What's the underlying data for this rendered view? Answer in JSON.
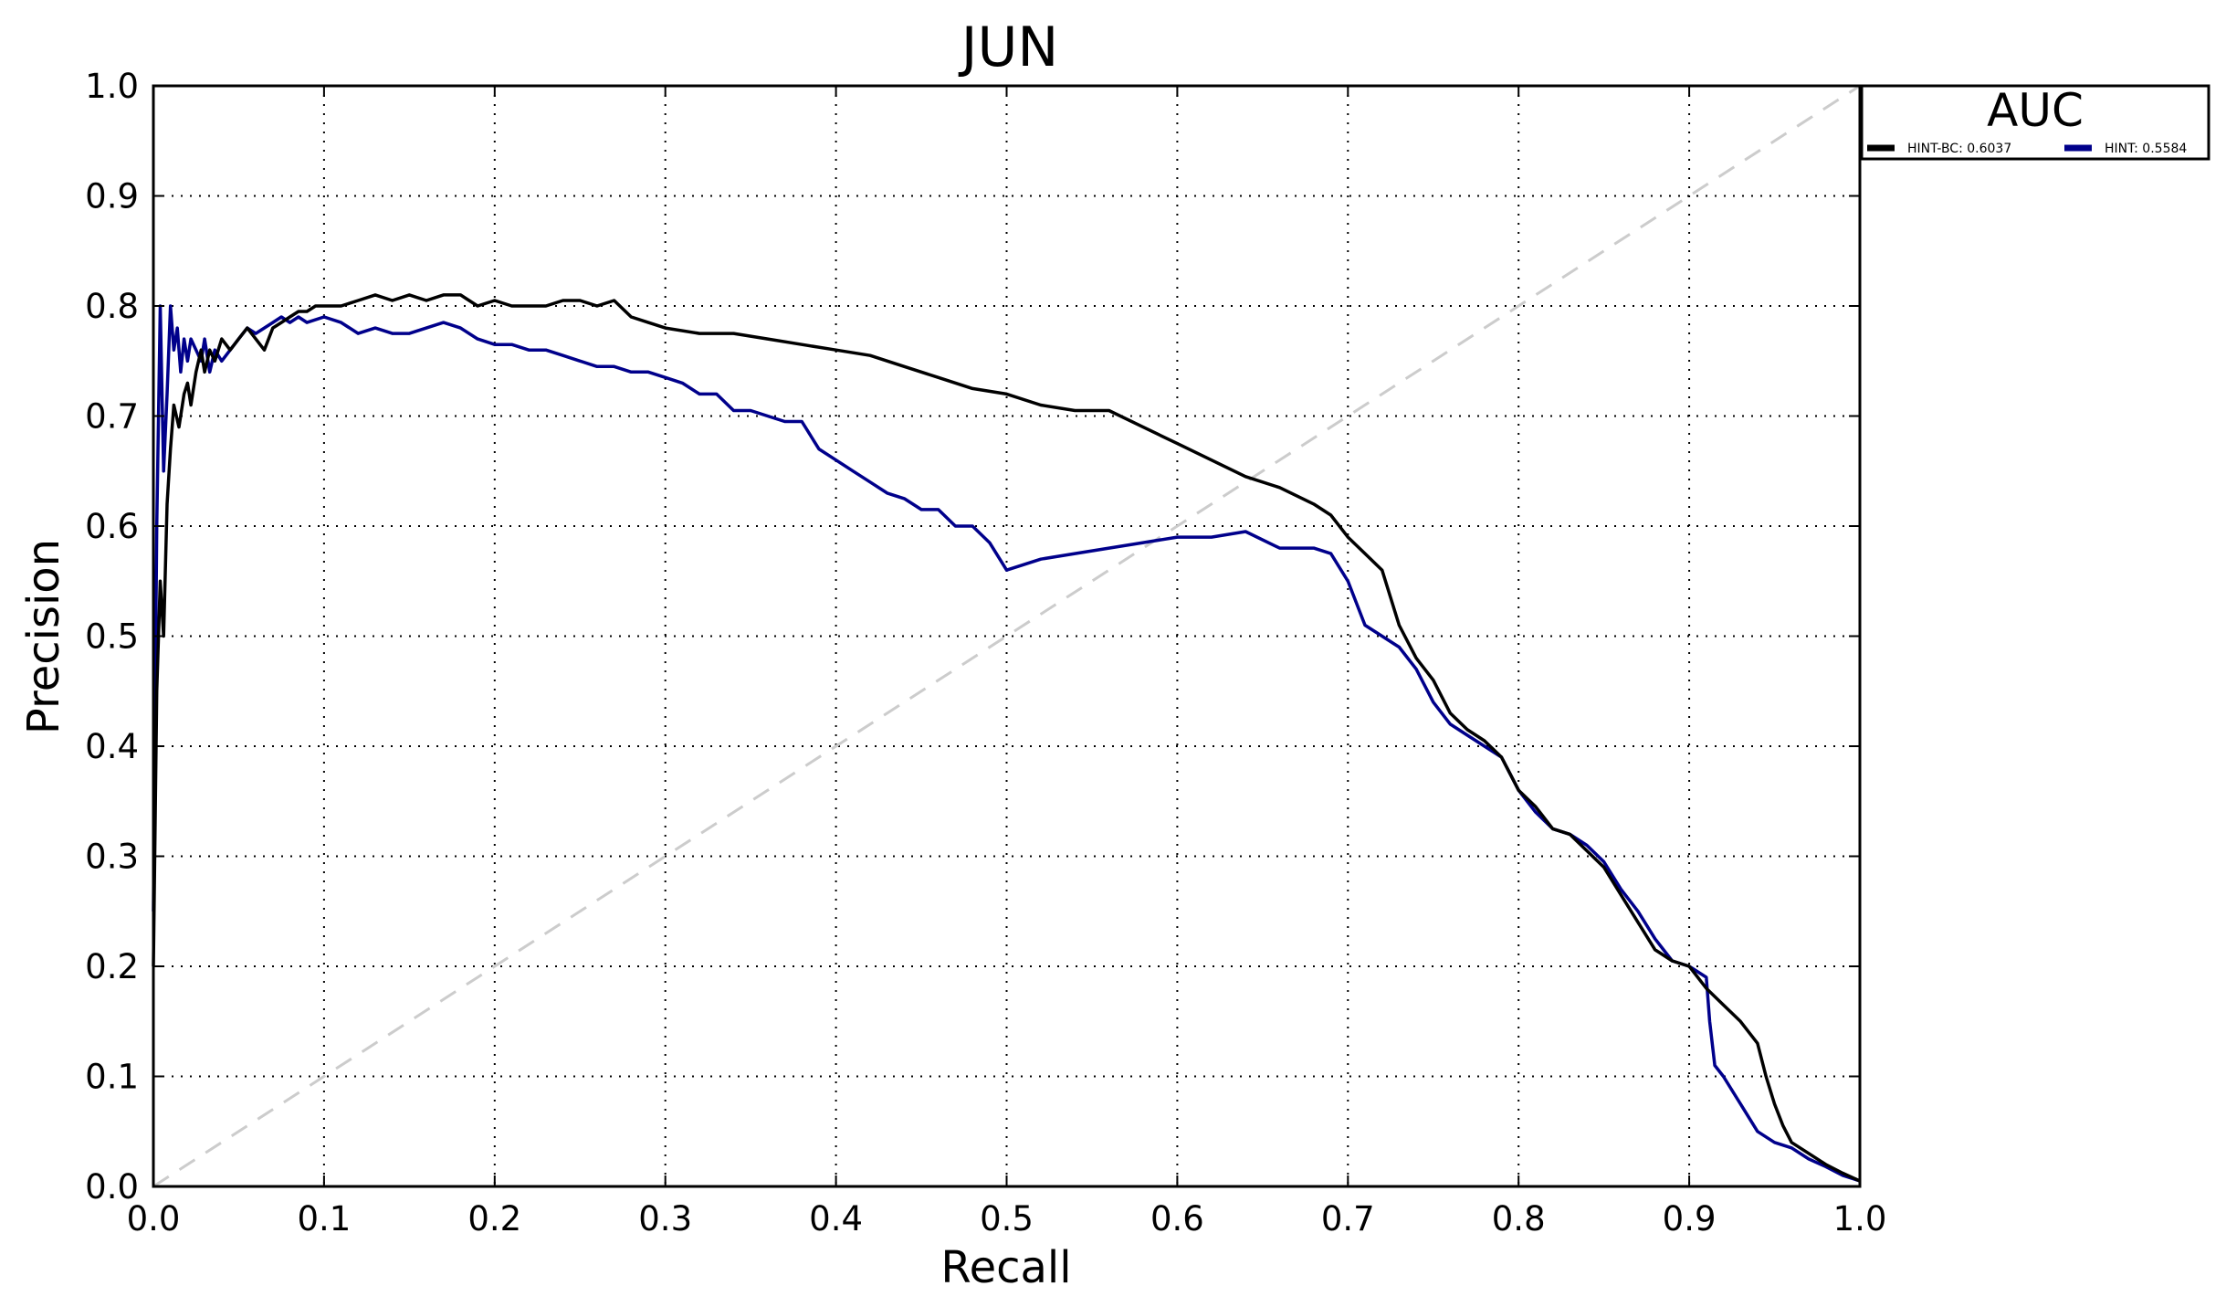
{
  "chart_data": {
    "type": "line",
    "title": "JUN",
    "xlabel": "Recall",
    "ylabel": "Precision",
    "xlim": [
      0.0,
      1.0
    ],
    "ylim": [
      0.0,
      1.0
    ],
    "xticks": [
      "0.0",
      "0.1",
      "0.2",
      "0.3",
      "0.4",
      "0.5",
      "0.6",
      "0.7",
      "0.8",
      "0.9",
      "1.0"
    ],
    "yticks": [
      "0.0",
      "0.1",
      "0.2",
      "0.3",
      "0.4",
      "0.5",
      "0.6",
      "0.7",
      "0.8",
      "0.9",
      "1.0"
    ],
    "grid": true,
    "legend": {
      "title": "AUC",
      "position": "outside-top-right"
    },
    "reference_line": {
      "x": [
        0.0,
        1.0
      ],
      "y": [
        0.0,
        1.0
      ],
      "color": "#cccccc",
      "style": "dashed"
    },
    "series": [
      {
        "name": "HINT-BC: 0.6037",
        "color": "#000000",
        "x": [
          0.0,
          0.002,
          0.004,
          0.006,
          0.008,
          0.01,
          0.012,
          0.015,
          0.018,
          0.02,
          0.022,
          0.025,
          0.028,
          0.03,
          0.033,
          0.036,
          0.04,
          0.045,
          0.05,
          0.055,
          0.06,
          0.065,
          0.07,
          0.075,
          0.08,
          0.085,
          0.09,
          0.095,
          0.1,
          0.11,
          0.12,
          0.13,
          0.14,
          0.15,
          0.16,
          0.17,
          0.18,
          0.19,
          0.2,
          0.21,
          0.22,
          0.23,
          0.24,
          0.25,
          0.26,
          0.27,
          0.28,
          0.29,
          0.3,
          0.32,
          0.34,
          0.36,
          0.38,
          0.4,
          0.42,
          0.44,
          0.46,
          0.48,
          0.5,
          0.52,
          0.54,
          0.56,
          0.58,
          0.6,
          0.62,
          0.64,
          0.66,
          0.68,
          0.69,
          0.7,
          0.71,
          0.72,
          0.73,
          0.74,
          0.75,
          0.76,
          0.77,
          0.78,
          0.79,
          0.8,
          0.81,
          0.82,
          0.83,
          0.84,
          0.85,
          0.86,
          0.87,
          0.88,
          0.89,
          0.9,
          0.91,
          0.92,
          0.93,
          0.94,
          0.945,
          0.95,
          0.955,
          0.96,
          0.97,
          0.98,
          0.99,
          1.0
        ],
        "y": [
          0.2,
          0.45,
          0.55,
          0.5,
          0.62,
          0.67,
          0.71,
          0.69,
          0.72,
          0.73,
          0.71,
          0.74,
          0.76,
          0.74,
          0.76,
          0.75,
          0.77,
          0.76,
          0.77,
          0.78,
          0.77,
          0.76,
          0.78,
          0.785,
          0.79,
          0.795,
          0.795,
          0.8,
          0.8,
          0.8,
          0.805,
          0.81,
          0.805,
          0.81,
          0.805,
          0.81,
          0.81,
          0.8,
          0.805,
          0.8,
          0.8,
          0.8,
          0.805,
          0.805,
          0.8,
          0.805,
          0.79,
          0.785,
          0.78,
          0.775,
          0.775,
          0.77,
          0.765,
          0.76,
          0.755,
          0.745,
          0.735,
          0.725,
          0.72,
          0.71,
          0.705,
          0.705,
          0.69,
          0.675,
          0.66,
          0.645,
          0.635,
          0.62,
          0.61,
          0.59,
          0.575,
          0.56,
          0.51,
          0.48,
          0.46,
          0.43,
          0.415,
          0.405,
          0.39,
          0.36,
          0.345,
          0.325,
          0.32,
          0.305,
          0.29,
          0.265,
          0.24,
          0.215,
          0.205,
          0.2,
          0.18,
          0.165,
          0.15,
          0.13,
          0.1,
          0.075,
          0.055,
          0.04,
          0.03,
          0.02,
          0.012,
          0.005
        ]
      },
      {
        "name": "HINT: 0.5584",
        "color": "#00008b",
        "x": [
          0.0,
          0.002,
          0.004,
          0.006,
          0.008,
          0.01,
          0.012,
          0.014,
          0.016,
          0.018,
          0.02,
          0.022,
          0.025,
          0.028,
          0.03,
          0.033,
          0.036,
          0.04,
          0.045,
          0.05,
          0.055,
          0.06,
          0.065,
          0.07,
          0.075,
          0.08,
          0.085,
          0.09,
          0.1,
          0.11,
          0.12,
          0.13,
          0.14,
          0.15,
          0.16,
          0.17,
          0.18,
          0.19,
          0.2,
          0.21,
          0.22,
          0.23,
          0.24,
          0.25,
          0.26,
          0.27,
          0.28,
          0.29,
          0.3,
          0.31,
          0.32,
          0.33,
          0.34,
          0.35,
          0.36,
          0.37,
          0.38,
          0.39,
          0.4,
          0.41,
          0.42,
          0.43,
          0.44,
          0.45,
          0.46,
          0.47,
          0.48,
          0.49,
          0.5,
          0.52,
          0.54,
          0.56,
          0.58,
          0.6,
          0.62,
          0.64,
          0.66,
          0.68,
          0.69,
          0.7,
          0.71,
          0.72,
          0.73,
          0.74,
          0.75,
          0.76,
          0.77,
          0.78,
          0.79,
          0.8,
          0.81,
          0.82,
          0.83,
          0.84,
          0.85,
          0.86,
          0.87,
          0.88,
          0.89,
          0.9,
          0.91,
          0.912,
          0.915,
          0.92,
          0.93,
          0.94,
          0.95,
          0.96,
          0.97,
          0.98,
          0.99,
          1.0
        ],
        "y": [
          0.25,
          0.6,
          0.8,
          0.65,
          0.72,
          0.8,
          0.76,
          0.78,
          0.74,
          0.77,
          0.75,
          0.77,
          0.76,
          0.75,
          0.77,
          0.74,
          0.76,
          0.75,
          0.76,
          0.77,
          0.78,
          0.775,
          0.78,
          0.785,
          0.79,
          0.785,
          0.79,
          0.785,
          0.79,
          0.785,
          0.775,
          0.78,
          0.775,
          0.775,
          0.78,
          0.785,
          0.78,
          0.77,
          0.765,
          0.765,
          0.76,
          0.76,
          0.755,
          0.75,
          0.745,
          0.745,
          0.74,
          0.74,
          0.735,
          0.73,
          0.72,
          0.72,
          0.705,
          0.705,
          0.7,
          0.695,
          0.695,
          0.67,
          0.66,
          0.65,
          0.64,
          0.63,
          0.625,
          0.615,
          0.615,
          0.6,
          0.6,
          0.585,
          0.56,
          0.57,
          0.575,
          0.58,
          0.585,
          0.59,
          0.59,
          0.595,
          0.58,
          0.58,
          0.575,
          0.55,
          0.51,
          0.5,
          0.49,
          0.47,
          0.44,
          0.42,
          0.41,
          0.4,
          0.39,
          0.36,
          0.34,
          0.325,
          0.32,
          0.31,
          0.295,
          0.27,
          0.25,
          0.225,
          0.205,
          0.2,
          0.19,
          0.15,
          0.11,
          0.1,
          0.075,
          0.05,
          0.04,
          0.035,
          0.025,
          0.018,
          0.01,
          0.005
        ]
      }
    ]
  }
}
